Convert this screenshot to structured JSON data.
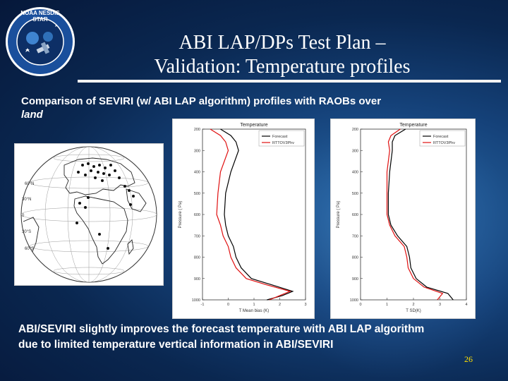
{
  "header": {
    "title_line1": "ABI LAP/DPs Test Plan –",
    "title_line2": "Validation: Temperature profiles",
    "logo_text": "NOAA NESDIS STAR",
    "logo_icon": "star-satellite-logo-icon"
  },
  "subtitle": {
    "line1": "Comparison of SEVIRI (w/ ABI LAP algorithm) profiles with RAOBs over",
    "line2": "land"
  },
  "map": {
    "icon": "globe-map-icon",
    "lat_labels": [
      "60°N",
      "30°N",
      "0",
      "30°S",
      "60°S"
    ]
  },
  "chart_data": [
    {
      "type": "line",
      "title": "Temperature",
      "xlabel": "T Mean bias (K)",
      "ylabel": "Pressure ( Pa)",
      "xlim": [
        -1,
        3
      ],
      "ylim": [
        1000,
        200
      ],
      "x_ticks": [
        "-1",
        "0",
        "1",
        "2",
        "3"
      ],
      "y_ticks": [
        "200",
        "300",
        "400",
        "500",
        "600",
        "700",
        "800",
        "900",
        "1000"
      ],
      "legend_position": "top-right",
      "series": [
        {
          "name": "Forecast",
          "color": "#000000",
          "pressure": [
            200,
            230,
            260,
            300,
            400,
            500,
            600,
            650,
            700,
            750,
            800,
            850,
            900,
            930,
            960,
            980,
            1000
          ],
          "values": [
            -0.3,
            0.1,
            0.3,
            0.4,
            0.1,
            -0.1,
            -0.15,
            -0.1,
            0.0,
            0.2,
            0.3,
            0.5,
            0.9,
            1.7,
            2.5,
            2.1,
            1.5
          ]
        },
        {
          "name": "RTTOV3Phv",
          "color": "#e01010",
          "pressure": [
            200,
            230,
            260,
            300,
            400,
            500,
            600,
            650,
            700,
            750,
            800,
            850,
            900,
            930,
            960,
            980,
            1000
          ],
          "values": [
            -0.7,
            -0.3,
            -0.1,
            0.0,
            -0.3,
            -0.4,
            -0.45,
            -0.3,
            -0.2,
            0.0,
            0.1,
            0.3,
            0.7,
            1.5,
            2.4,
            2.0,
            1.6
          ]
        }
      ]
    },
    {
      "type": "line",
      "title": "Temperature",
      "xlabel": "T SD(K)",
      "ylabel": "Pressure ( Pa)",
      "xlim": [
        0,
        4
      ],
      "ylim": [
        1000,
        200
      ],
      "x_ticks": [
        "0",
        "1",
        "2",
        "3",
        "4"
      ],
      "y_ticks": [
        "200",
        "300",
        "400",
        "500",
        "600",
        "700",
        "800",
        "900",
        "1000"
      ],
      "legend_position": "top-right",
      "series": [
        {
          "name": "Forecast",
          "color": "#000000",
          "pressure": [
            200,
            230,
            260,
            300,
            400,
            500,
            600,
            650,
            700,
            750,
            800,
            850,
            900,
            940,
            970,
            1000
          ],
          "values": [
            1.7,
            1.3,
            1.2,
            1.2,
            1.1,
            1.05,
            1.05,
            1.15,
            1.4,
            1.75,
            1.85,
            1.9,
            2.1,
            2.5,
            3.3,
            3.5
          ]
        },
        {
          "name": "RTTOV3Phv",
          "color": "#e01010",
          "pressure": [
            200,
            230,
            260,
            300,
            400,
            500,
            600,
            650,
            700,
            750,
            800,
            850,
            900,
            940,
            970,
            1000
          ],
          "values": [
            1.5,
            1.15,
            1.05,
            1.1,
            1.0,
            1.0,
            1.0,
            1.1,
            1.3,
            1.65,
            1.75,
            1.8,
            2.0,
            2.4,
            3.1,
            2.9
          ]
        }
      ]
    }
  ],
  "conclusion": {
    "line1": "ABI/SEVIRI slightly improves the forecast temperature with ABI LAP algorithm",
    "line2": "due to limited temperature vertical information in ABI/SEVIRI"
  },
  "footer": {
    "page_number": "26"
  },
  "colors": {
    "page_number": "#ffe000",
    "rule": "#f2f2f2",
    "forecast": "#000000",
    "rttov": "#e01010"
  }
}
